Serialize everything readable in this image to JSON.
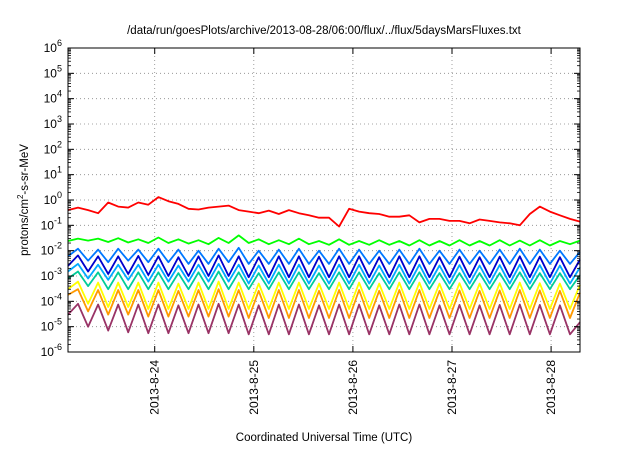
{
  "chart_data": {
    "type": "line",
    "title": "/data/run/goesPlots/archive/2013-08-28/06:00/flux/../flux/5daysMarsFluxes.txt",
    "xlabel": "Coordinated Universal Time (UTC)",
    "ylabel": "protons/cm2-s-sr-MeV",
    "y_scale": "log",
    "ylim_exponents": [
      -6,
      6
    ],
    "y_tick_exponents": [
      -6,
      -5,
      -4,
      -3,
      -2,
      -1,
      0,
      1,
      2,
      3,
      4,
      5,
      6
    ],
    "y_tick_base": "10",
    "xlim": [
      "2013-08-23T03:00",
      "2013-08-28T07:00"
    ],
    "x_ticks": [
      {
        "at": "2013-08-24T00:00",
        "label": "2013-8-24"
      },
      {
        "at": "2013-08-25T00:00",
        "label": "2013-8-25"
      },
      {
        "at": "2013-08-26T00:00",
        "label": "2013-8-26"
      },
      {
        "at": "2013-08-27T00:00",
        "label": "2013-8-27"
      },
      {
        "at": "2013-08-28T00:00",
        "label": "2013-8-28"
      }
    ],
    "grid": true,
    "legend": "none",
    "series": [
      {
        "color": "#ff0000",
        "values": [
          0.4,
          0.5,
          0.4,
          0.3,
          0.8,
          0.55,
          0.5,
          0.8,
          0.65,
          1.3,
          0.9,
          0.7,
          0.45,
          0.42,
          0.5,
          0.55,
          0.6,
          0.4,
          0.35,
          0.3,
          0.38,
          0.28,
          0.4,
          0.3,
          0.25,
          0.2,
          0.2,
          0.09,
          0.45,
          0.35,
          0.3,
          0.28,
          0.22,
          0.22,
          0.25,
          0.13,
          0.18,
          0.18,
          0.15,
          0.15,
          0.12,
          0.17,
          0.15,
          0.13,
          0.12,
          0.1,
          0.28,
          0.55,
          0.35,
          0.25,
          0.18,
          0.14
        ]
      },
      {
        "color": "#00ff00",
        "values": [
          0.024,
          0.03,
          0.025,
          0.03,
          0.022,
          0.031,
          0.021,
          0.028,
          0.02,
          0.033,
          0.02,
          0.028,
          0.019,
          0.026,
          0.018,
          0.032,
          0.02,
          0.04,
          0.02,
          0.028,
          0.018,
          0.026,
          0.018,
          0.03,
          0.018,
          0.024,
          0.017,
          0.028,
          0.017,
          0.024,
          0.017,
          0.026,
          0.017,
          0.024,
          0.016,
          0.026,
          0.016,
          0.024,
          0.016,
          0.026,
          0.016,
          0.024,
          0.016,
          0.026,
          0.016,
          0.025,
          0.016,
          0.026,
          0.016,
          0.024,
          0.018,
          0.025
        ]
      },
      {
        "color": "#0077ff",
        "values": [
          0.006,
          0.012,
          0.004,
          0.011,
          0.0035,
          0.012,
          0.004,
          0.011,
          0.0035,
          0.012,
          0.0035,
          0.011,
          0.003,
          0.01,
          0.003,
          0.012,
          0.0035,
          0.013,
          0.003,
          0.01,
          0.003,
          0.011,
          0.003,
          0.012,
          0.003,
          0.01,
          0.003,
          0.012,
          0.003,
          0.011,
          0.003,
          0.01,
          0.003,
          0.011,
          0.003,
          0.012,
          0.003,
          0.01,
          0.003,
          0.011,
          0.003,
          0.01,
          0.003,
          0.011,
          0.003,
          0.012,
          0.003,
          0.011,
          0.003,
          0.01,
          0.003,
          0.009
        ]
      },
      {
        "color": "#0000cc",
        "values": [
          0.0025,
          0.0065,
          0.0015,
          0.006,
          0.0012,
          0.006,
          0.0012,
          0.0062,
          0.0011,
          0.006,
          0.001,
          0.0055,
          0.001,
          0.006,
          0.001,
          0.0065,
          0.001,
          0.006,
          0.0009,
          0.0055,
          0.0009,
          0.006,
          0.0009,
          0.006,
          0.0009,
          0.0058,
          0.0009,
          0.006,
          0.0009,
          0.006,
          0.0009,
          0.0055,
          0.0009,
          0.006,
          0.0009,
          0.006,
          0.0009,
          0.0055,
          0.0009,
          0.0058,
          0.0009,
          0.0055,
          0.0009,
          0.0058,
          0.0009,
          0.006,
          0.0009,
          0.0058,
          0.0009,
          0.0055,
          0.0009,
          0.0045
        ]
      },
      {
        "color": "#00aaff",
        "values": [
          0.0015,
          0.003,
          0.0008,
          0.0028,
          0.0007,
          0.0028,
          0.0007,
          0.0028,
          0.0006,
          0.0028,
          0.0006,
          0.0026,
          0.0006,
          0.0028,
          0.0006,
          0.003,
          0.0006,
          0.0028,
          0.0005,
          0.0026,
          0.0005,
          0.0028,
          0.0005,
          0.0028,
          0.0005,
          0.0026,
          0.0005,
          0.0028,
          0.0005,
          0.0028,
          0.0005,
          0.0026,
          0.0005,
          0.0028,
          0.0005,
          0.0028,
          0.0005,
          0.0026,
          0.0005,
          0.0027,
          0.0005,
          0.0026,
          0.0005,
          0.0027,
          0.0005,
          0.0028,
          0.0005,
          0.0027,
          0.0005,
          0.0026,
          0.0005,
          0.0022
        ]
      },
      {
        "color": "#00cc99",
        "values": [
          0.0008,
          0.0015,
          0.0004,
          0.0014,
          0.0003,
          0.0014,
          0.0003,
          0.0014,
          0.0003,
          0.0014,
          0.0003,
          0.0013,
          0.0003,
          0.0014,
          0.0003,
          0.0015,
          0.0003,
          0.0014,
          0.0003,
          0.0013,
          0.0003,
          0.0014,
          0.0003,
          0.0014,
          0.0003,
          0.0013,
          0.0003,
          0.0014,
          0.0003,
          0.0014,
          0.0003,
          0.0013,
          0.0003,
          0.0014,
          0.0003,
          0.0014,
          0.0003,
          0.0013,
          0.0003,
          0.0013,
          0.0003,
          0.0013,
          0.0003,
          0.0013,
          0.0003,
          0.0014,
          0.0003,
          0.0013,
          0.0003,
          0.0013,
          0.0003,
          0.0011
        ]
      },
      {
        "color": "#ffff00",
        "values": [
          0.0003,
          0.0006,
          8e-05,
          0.00055,
          6e-05,
          0.00055,
          6e-05,
          0.00055,
          5e-05,
          0.00055,
          5e-05,
          0.0005,
          5e-05,
          0.00055,
          5e-05,
          0.0006,
          5e-05,
          0.00055,
          5e-05,
          0.0005,
          5e-05,
          0.00055,
          5e-05,
          0.00055,
          5e-05,
          0.0005,
          5e-05,
          0.00055,
          5e-05,
          0.00055,
          5e-05,
          0.0005,
          5e-05,
          0.00055,
          5e-05,
          0.00055,
          5e-05,
          0.0005,
          5e-05,
          0.00052,
          5e-05,
          0.0005,
          5e-05,
          0.00052,
          5e-05,
          0.00055,
          5e-05,
          0.00052,
          5e-05,
          0.0005,
          5e-05,
          0.00045
        ]
      },
      {
        "color": "#ff9900",
        "values": [
          0.00018,
          0.0003,
          4e-05,
          0.00028,
          3e-05,
          0.00028,
          3e-05,
          0.00028,
          2.5e-05,
          0.00028,
          2.5e-05,
          0.00026,
          2.5e-05,
          0.00028,
          2.5e-05,
          0.0003,
          2.5e-05,
          0.00028,
          2.2e-05,
          0.00026,
          2.2e-05,
          0.00028,
          2.2e-05,
          0.00028,
          2.2e-05,
          0.00026,
          2.2e-05,
          0.00028,
          2.2e-05,
          0.00028,
          2.2e-05,
          0.00026,
          2.2e-05,
          0.00028,
          2.2e-05,
          0.00028,
          2.2e-05,
          0.00026,
          2.2e-05,
          0.00027,
          2.2e-05,
          0.00026,
          2.2e-05,
          0.00027,
          2.2e-05,
          0.00028,
          2.2e-05,
          0.00027,
          2.2e-05,
          0.00026,
          2.2e-05,
          0.00022
        ]
      },
      {
        "color": "#993366",
        "values": [
          3e-05,
          8e-05,
          1e-05,
          7.5e-05,
          7e-06,
          7.5e-05,
          6e-06,
          7.5e-05,
          5.5e-06,
          7.5e-05,
          5.5e-06,
          7e-05,
          5.5e-06,
          7.5e-05,
          5.5e-06,
          8e-05,
          5.5e-06,
          7.5e-05,
          5e-06,
          7e-05,
          5e-06,
          7.5e-05,
          5e-06,
          7.5e-05,
          5e-06,
          7e-05,
          5e-06,
          7.5e-05,
          5e-06,
          7.5e-05,
          5e-06,
          7e-05,
          5e-06,
          7.5e-05,
          5e-06,
          7.5e-05,
          5e-06,
          7e-05,
          5e-06,
          7.2e-05,
          5e-06,
          7e-05,
          5e-06,
          7.2e-05,
          5e-06,
          7.5e-05,
          5e-06,
          7.2e-05,
          5e-06,
          7e-05,
          5e-06,
          1.5e-05
        ]
      }
    ]
  }
}
